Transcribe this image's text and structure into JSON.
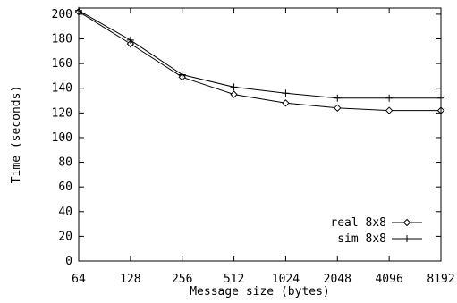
{
  "chart_data": {
    "type": "line",
    "title": "",
    "xlabel": "Message size (bytes)",
    "ylabel": "Time (seconds)",
    "x_scale": "log2",
    "categories": [
      "64",
      "128",
      "256",
      "512",
      "1024",
      "2048",
      "4096",
      "8192"
    ],
    "x": [
      64,
      128,
      256,
      512,
      1024,
      2048,
      4096,
      8192
    ],
    "ylim": [
      0,
      205
    ],
    "yticks": [
      0,
      20,
      40,
      60,
      80,
      100,
      120,
      140,
      160,
      180,
      200
    ],
    "grid": false,
    "legend_position": "bottom-right",
    "series": [
      {
        "name": "real 8x8",
        "marker": "diamond",
        "values": [
          202,
          176,
          149,
          135,
          128,
          124,
          122,
          122
        ]
      },
      {
        "name": "sim 8x8",
        "marker": "plus",
        "values": [
          203,
          179,
          151,
          141,
          136,
          132,
          132,
          132
        ]
      }
    ]
  }
}
